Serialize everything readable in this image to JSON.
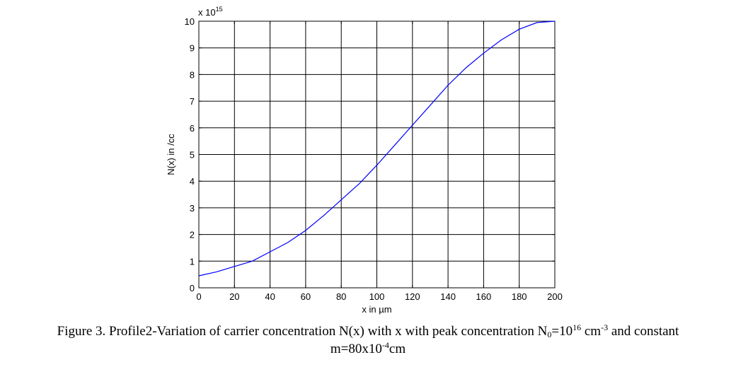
{
  "chart_data": {
    "type": "line",
    "xlabel": "x in µm",
    "ylabel": "N(x) in /cc",
    "y_multiplier_base": "x 10",
    "y_multiplier_exp": "15",
    "xlim": [
      0,
      200
    ],
    "ylim": [
      0,
      10
    ],
    "xticks": [
      "0",
      "20",
      "40",
      "60",
      "80",
      "100",
      "120",
      "140",
      "160",
      "180",
      "200"
    ],
    "yticks": [
      "0",
      "1",
      "2",
      "3",
      "4",
      "5",
      "6",
      "7",
      "8",
      "9",
      "10"
    ],
    "grid": true,
    "line_color": "#0000ff",
    "series": [
      {
        "x": [
          0,
          10,
          20,
          30,
          40,
          50,
          60,
          70,
          80,
          90,
          100,
          110,
          120,
          130,
          140,
          150,
          160,
          170,
          180,
          190,
          200
        ],
        "values": [
          0.45,
          0.6,
          0.8,
          1.0,
          1.35,
          1.7,
          2.15,
          2.7,
          3.3,
          3.9,
          4.6,
          5.35,
          6.1,
          6.85,
          7.6,
          8.25,
          8.8,
          9.3,
          9.7,
          9.95,
          10.0
        ]
      }
    ]
  },
  "caption": {
    "line1_a": "Figure 3. Profile2-Variation of carrier concentration N(x) with x with peak concentration N",
    "line1_sub": "0",
    "line1_b": "=10",
    "line1_sup1": "16",
    "line1_c": " cm",
    "line1_sup2": "-3",
    "line1_d": " and constant",
    "line2_a": "m=80x10",
    "line2_sup": "-4",
    "line2_b": "cm"
  }
}
